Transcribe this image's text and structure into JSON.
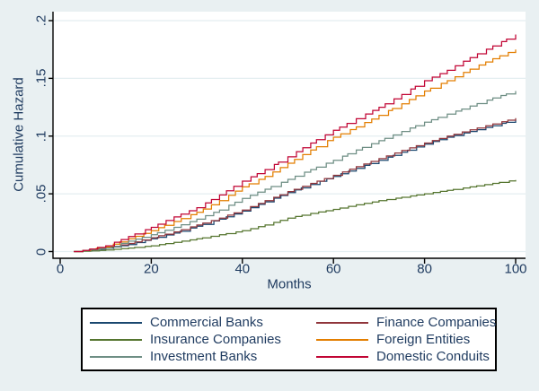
{
  "figure": {
    "background_color": "#e9f0f2",
    "plot_background_color": "#ffffff",
    "grid_color": "#e4eef1",
    "axis_color": "#000000",
    "text_color": "#1e3a5f",
    "legend_border_color": "#000000"
  },
  "chart_data": {
    "type": "line",
    "subtype": "step-function-cumulative-hazard",
    "title": "",
    "xlabel": "Months",
    "ylabel": "Cumulative Hazard",
    "xlim": [
      0,
      100
    ],
    "ylim": [
      0,
      0.2
    ],
    "x_ticks": [
      0,
      20,
      40,
      60,
      80,
      100
    ],
    "x_tick_labels": [
      "0",
      "20",
      "40",
      "60",
      "80",
      "100"
    ],
    "y_ticks": [
      0,
      0.05,
      0.1,
      0.15,
      0.2
    ],
    "y_tick_labels": [
      "0",
      ".05",
      ".1",
      ".15",
      ".2"
    ],
    "grid": "horizontal",
    "legend_position": "bottom",
    "x_anchor_months": [
      3,
      5,
      10,
      15,
      20,
      25,
      30,
      35,
      40,
      45,
      50,
      55,
      60,
      65,
      70,
      75,
      80,
      85,
      90,
      95,
      100
    ],
    "series": [
      {
        "name": "Commercial Banks",
        "color": "#1a476f",
        "values": [
          0,
          0.0005,
          0.003,
          0.006,
          0.011,
          0.016,
          0.022,
          0.028,
          0.035,
          0.043,
          0.051,
          0.058,
          0.065,
          0.072,
          0.079,
          0.086,
          0.093,
          0.099,
          0.104,
          0.109,
          0.114
        ]
      },
      {
        "name": "Finance Companies",
        "color": "#90353b",
        "values": [
          0,
          0.001,
          0.0035,
          0.007,
          0.012,
          0.017,
          0.023,
          0.029,
          0.036,
          0.044,
          0.052,
          0.059,
          0.066,
          0.0735,
          0.0805,
          0.0875,
          0.094,
          0.1,
          0.1055,
          0.1105,
          0.1155
        ]
      },
      {
        "name": "Insurance Companies",
        "color": "#55752f",
        "values": [
          0,
          0.0003,
          0.0013,
          0.003,
          0.005,
          0.008,
          0.011,
          0.0145,
          0.018,
          0.023,
          0.029,
          0.033,
          0.0365,
          0.0405,
          0.044,
          0.047,
          0.05,
          0.053,
          0.056,
          0.059,
          0.062
        ]
      },
      {
        "name": "Foreign Entities",
        "color": "#e37e00",
        "values": [
          0,
          0.001,
          0.004,
          0.011,
          0.018,
          0.026,
          0.034,
          0.044,
          0.056,
          0.065,
          0.0765,
          0.088,
          0.099,
          0.108,
          0.118,
          0.128,
          0.139,
          0.148,
          0.158,
          0.167,
          0.175
        ]
      },
      {
        "name": "Investment Banks",
        "color": "#6e8e84",
        "values": [
          0,
          0.001,
          0.003,
          0.009,
          0.0145,
          0.021,
          0.028,
          0.036,
          0.046,
          0.054,
          0.0625,
          0.071,
          0.079,
          0.088,
          0.096,
          0.104,
          0.112,
          0.119,
          0.126,
          0.133,
          0.139
        ]
      },
      {
        "name": "Domestic Conduits",
        "color": "#c10534",
        "values": [
          0,
          0.001,
          0.005,
          0.013,
          0.021,
          0.03,
          0.038,
          0.049,
          0.061,
          0.071,
          0.082,
          0.094,
          0.105,
          0.115,
          0.125,
          0.136,
          0.148,
          0.157,
          0.168,
          0.178,
          0.188
        ]
      }
    ],
    "legend_columns": [
      [
        "Commercial Banks",
        "Insurance Companies",
        "Investment Banks"
      ],
      [
        "Finance Companies",
        "Foreign Entities",
        "Domestic Conduits"
      ]
    ]
  }
}
